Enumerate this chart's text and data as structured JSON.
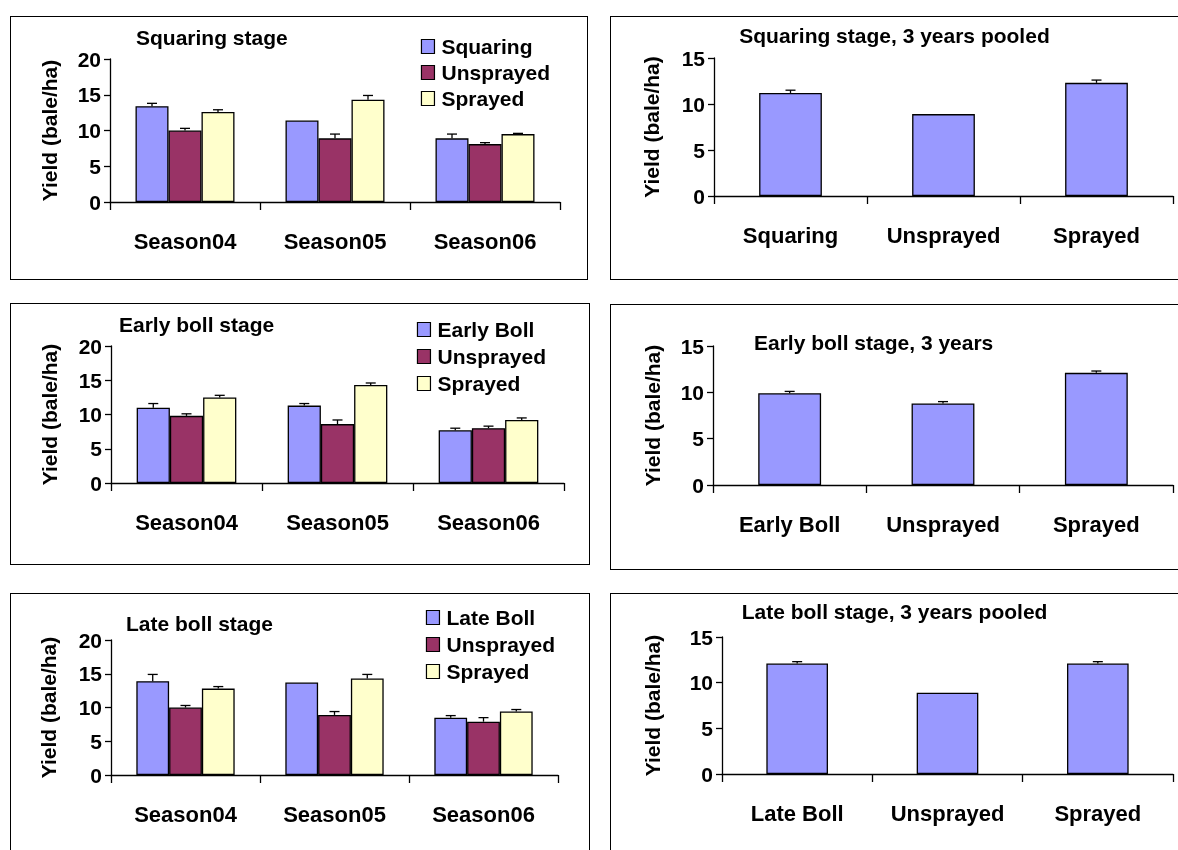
{
  "chart_data": [
    {
      "type": "bar",
      "title": "Squaring stage",
      "ylabel": "Yield (bale/ha)",
      "categories": [
        "Season04",
        "Season05",
        "Season06"
      ],
      "series": [
        {
          "name": "Squaring",
          "color": "#9999ff",
          "values": [
            13.4,
            11.4,
            8.9
          ],
          "errors": [
            [
              13.4,
              13.8
            ],
            null,
            [
              8.9,
              9.5
            ]
          ]
        },
        {
          "name": "Unsprayed",
          "color": "#993366",
          "values": [
            10.0,
            8.9,
            8.1
          ],
          "errors": [
            [
              10.0,
              10.3
            ],
            [
              8.9,
              9.5
            ],
            [
              8.1,
              8.3
            ]
          ]
        },
        {
          "name": "Sprayed",
          "color": "#ffffcc",
          "values": [
            12.6,
            14.3,
            9.5
          ],
          "errors": [
            [
              12.6,
              12.9
            ],
            [
              14.3,
              14.9
            ],
            [
              9.5,
              9.6
            ]
          ]
        }
      ],
      "ylim": [
        0,
        20
      ],
      "yticks": [
        0,
        5,
        10,
        15,
        20
      ],
      "legend": "top right"
    },
    {
      "type": "bar",
      "title": "Squaring stage, 3 years pooled",
      "ylabel": "Yield (bale/ha)",
      "categories": [
        "Squaring",
        "Unsprayed",
        "Sprayed"
      ],
      "values": [
        11.2,
        8.9,
        12.3
      ],
      "color": "#9999ff",
      "errors": [
        [
          11.2,
          11.5
        ],
        null,
        [
          12.3,
          12.6
        ]
      ],
      "ylim": [
        0,
        15
      ],
      "yticks": [
        0,
        5,
        10,
        15
      ]
    },
    {
      "type": "bar",
      "title": "Early boll stage",
      "ylabel": "Yield (bale/ha)",
      "categories": [
        "Season04",
        "Season05",
        "Season06"
      ],
      "series": [
        {
          "name": "Early Boll",
          "color": "#9999ff",
          "values": [
            11.0,
            11.3,
            7.7
          ],
          "errors": [
            [
              11.0,
              11.6
            ],
            [
              11.3,
              11.6
            ],
            [
              7.7,
              8.0
            ]
          ]
        },
        {
          "name": "Unsprayed",
          "color": "#993366",
          "values": [
            9.8,
            8.6,
            8.0
          ],
          "errors": [
            [
              9.8,
              10.1
            ],
            [
              8.6,
              9.2
            ],
            [
              8.0,
              8.3
            ]
          ]
        },
        {
          "name": "Sprayed",
          "color": "#ffffcc",
          "values": [
            12.5,
            14.3,
            9.2
          ],
          "errors": [
            [
              12.5,
              12.8
            ],
            [
              14.3,
              14.6
            ],
            [
              9.2,
              9.5
            ]
          ]
        }
      ],
      "ylim": [
        0,
        20
      ],
      "yticks": [
        0,
        5,
        10,
        15,
        20
      ],
      "legend": "top right"
    },
    {
      "type": "bar",
      "title": "Early boll stage, 3 years",
      "ylabel": "Yield (bale/ha)",
      "categories": [
        "Early Boll",
        "Unsprayed",
        "Sprayed"
      ],
      "values": [
        9.9,
        8.8,
        12.1
      ],
      "color": "#9999ff",
      "errors": [
        [
          9.9,
          10.1
        ],
        [
          8.8,
          9.0
        ],
        [
          12.1,
          12.3
        ]
      ],
      "ylim": [
        0,
        15
      ],
      "yticks": [
        0,
        5,
        10,
        15
      ]
    },
    {
      "type": "bar",
      "title": "Late boll stage",
      "ylabel": "Yield (bale/ha)",
      "categories": [
        "Season04",
        "Season05",
        "Season06"
      ],
      "series": [
        {
          "name": "Late Boll",
          "color": "#9999ff",
          "values": [
            13.9,
            13.7,
            8.5
          ],
          "errors": [
            [
              13.9,
              14.9
            ],
            null,
            [
              8.5,
              8.8
            ]
          ]
        },
        {
          "name": "Unsprayed",
          "color": "#993366",
          "values": [
            10.0,
            8.9,
            7.9
          ],
          "errors": [
            [
              10.0,
              10.3
            ],
            [
              8.9,
              9.4
            ],
            [
              7.9,
              8.5
            ]
          ]
        },
        {
          "name": "Sprayed",
          "color": "#ffffcc",
          "values": [
            12.8,
            14.3,
            9.4
          ],
          "errors": [
            [
              12.8,
              13.1
            ],
            [
              14.3,
              14.9
            ],
            [
              9.4,
              9.7
            ]
          ]
        }
      ],
      "ylim": [
        0,
        20
      ],
      "yticks": [
        0,
        5,
        10,
        15,
        20
      ],
      "legend": "top right"
    },
    {
      "type": "bar",
      "title": "Late boll stage, 3 years pooled",
      "ylabel": "Yield (bale/ha)",
      "categories": [
        "Late Boll",
        "Unsprayed",
        "Sprayed"
      ],
      "values": [
        12.1,
        8.9,
        12.1
      ],
      "color": "#9999ff",
      "errors": [
        [
          12.1,
          12.3
        ],
        null,
        [
          12.1,
          12.3
        ]
      ],
      "ylim": [
        0,
        15
      ],
      "yticks": [
        0,
        5,
        10,
        15
      ]
    }
  ]
}
